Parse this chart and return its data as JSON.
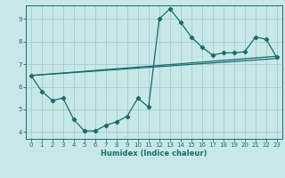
{
  "xlabel": "Humidex (Indice chaleur)",
  "ylabel": "",
  "bg_color": "#c8e8e8",
  "line_color": "#1a6b6b",
  "grid_color": "#a8d0d0",
  "xlim": [
    -0.5,
    23.5
  ],
  "ylim": [
    3.7,
    9.6
  ],
  "xticks": [
    0,
    1,
    2,
    3,
    4,
    5,
    6,
    7,
    8,
    9,
    10,
    11,
    12,
    13,
    14,
    15,
    16,
    17,
    18,
    19,
    20,
    21,
    22,
    23
  ],
  "yticks": [
    4,
    5,
    6,
    7,
    8,
    9
  ],
  "line1_x": [
    0,
    1,
    2,
    3,
    4,
    5,
    6,
    7,
    8,
    9,
    10,
    11,
    12,
    13,
    14,
    15,
    16,
    17,
    18,
    19,
    20,
    21,
    22,
    23
  ],
  "line1_y": [
    6.5,
    5.8,
    5.4,
    5.5,
    4.55,
    4.05,
    4.05,
    4.3,
    4.45,
    4.7,
    5.5,
    5.1,
    9.0,
    9.45,
    8.85,
    8.2,
    7.75,
    7.4,
    7.5,
    7.5,
    7.55,
    8.2,
    8.1,
    7.3
  ],
  "line2_x": [
    0,
    23
  ],
  "line2_y": [
    6.5,
    7.35
  ],
  "line3_x": [
    0,
    23
  ],
  "line3_y": [
    6.5,
    7.25
  ],
  "figsize": [
    3.2,
    2.0
  ],
  "dpi": 100
}
